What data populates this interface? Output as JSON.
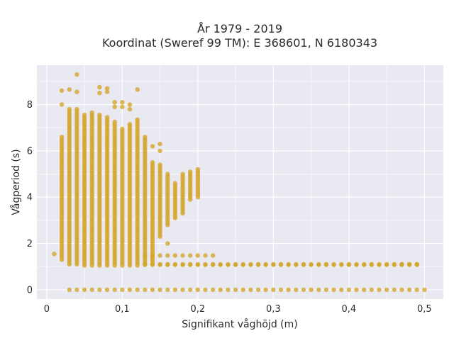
{
  "chart_data": {
    "type": "scatter",
    "title_line1": "År 1979 - 2019",
    "title_line2": "Koordinat (Sweref 99 TM): E 368601, N 6180343",
    "xlabel": "Signifikant våghöjd (m)",
    "ylabel": "Vågperiod (s)",
    "xlim": [
      -0.013,
      0.525
    ],
    "ylim": [
      -0.4,
      9.7
    ],
    "xticks": [
      0,
      0.1,
      0.2,
      0.3,
      0.4,
      0.5
    ],
    "xtick_labels": [
      "0",
      "0,1",
      "0,2",
      "0,3",
      "0,4",
      "0,5"
    ],
    "yticks": [
      0,
      2,
      4,
      6,
      8
    ],
    "ytick_labels": [
      "0",
      "2",
      "4",
      "6",
      "8"
    ],
    "grid": true,
    "colors": {
      "marker": "#d4a52a",
      "plot_bg": "#e9e9f2",
      "grid": "#ffffff"
    },
    "columns": [
      {
        "x": 0.02,
        "ymin": 1.3,
        "ymax": 6.6
      },
      {
        "x": 0.03,
        "ymin": 1.1,
        "ymax": 7.8
      },
      {
        "x": 0.04,
        "ymin": 1.1,
        "ymax": 7.8
      },
      {
        "x": 0.05,
        "ymin": 1.05,
        "ymax": 7.6
      },
      {
        "x": 0.06,
        "ymin": 1.05,
        "ymax": 7.7
      },
      {
        "x": 0.07,
        "ymin": 1.05,
        "ymax": 7.6
      },
      {
        "x": 0.08,
        "ymin": 1.05,
        "ymax": 7.5
      },
      {
        "x": 0.09,
        "ymin": 1.05,
        "ymax": 7.3
      },
      {
        "x": 0.1,
        "ymin": 1.05,
        "ymax": 7.0
      },
      {
        "x": 0.11,
        "ymin": 1.05,
        "ymax": 7.2
      },
      {
        "x": 0.12,
        "ymin": 1.05,
        "ymax": 7.4
      },
      {
        "x": 0.13,
        "ymin": 1.1,
        "ymax": 6.6
      },
      {
        "x": 0.14,
        "ymin": 1.2,
        "ymax": 5.5
      },
      {
        "x": 0.15,
        "ymin": 2.3,
        "ymax": 5.4
      },
      {
        "x": 0.16,
        "ymin": 2.8,
        "ymax": 5.0
      },
      {
        "x": 0.17,
        "ymin": 3.1,
        "ymax": 4.6
      },
      {
        "x": 0.18,
        "ymin": 3.3,
        "ymax": 5.0
      },
      {
        "x": 0.19,
        "ymin": 3.9,
        "ymax": 5.1
      },
      {
        "x": 0.2,
        "ymin": 4.0,
        "ymax": 5.2
      }
    ],
    "low_band": {
      "y": [
        1.08,
        1.1
      ],
      "x_start": 0.13,
      "x_end": 0.49,
      "x_step": 0.01
    },
    "band_15": {
      "y": 1.48,
      "x_values": [
        0.13,
        0.14,
        0.15,
        0.16,
        0.17,
        0.18,
        0.19,
        0.2,
        0.21,
        0.22
      ]
    },
    "zero_row": {
      "y": 0,
      "x_start": 0.03,
      "x_end": 0.5,
      "x_step": 0.01
    },
    "extra_points": [
      {
        "x": 0.01,
        "y": 1.55
      },
      {
        "x": 0.02,
        "y": 8.6
      },
      {
        "x": 0.03,
        "y": 8.65
      },
      {
        "x": 0.04,
        "y": 9.3
      },
      {
        "x": 0.04,
        "y": 8.55
      },
      {
        "x": 0.07,
        "y": 8.75
      },
      {
        "x": 0.07,
        "y": 8.5
      },
      {
        "x": 0.08,
        "y": 8.7
      },
      {
        "x": 0.08,
        "y": 8.55
      },
      {
        "x": 0.09,
        "y": 8.1
      },
      {
        "x": 0.09,
        "y": 7.9
      },
      {
        "x": 0.1,
        "y": 8.1
      },
      {
        "x": 0.1,
        "y": 7.9
      },
      {
        "x": 0.11,
        "y": 8.0
      },
      {
        "x": 0.11,
        "y": 7.8
      },
      {
        "x": 0.12,
        "y": 8.65
      },
      {
        "x": 0.02,
        "y": 8.0
      },
      {
        "x": 0.14,
        "y": 6.2
      },
      {
        "x": 0.15,
        "y": 6.3
      },
      {
        "x": 0.16,
        "y": 2.0
      },
      {
        "x": 0.15,
        "y": 6.0
      },
      {
        "x": 0.47,
        "y": 1.1
      },
      {
        "x": 0.48,
        "y": 1.1
      },
      {
        "x": 0.49,
        "y": 1.1
      }
    ]
  }
}
